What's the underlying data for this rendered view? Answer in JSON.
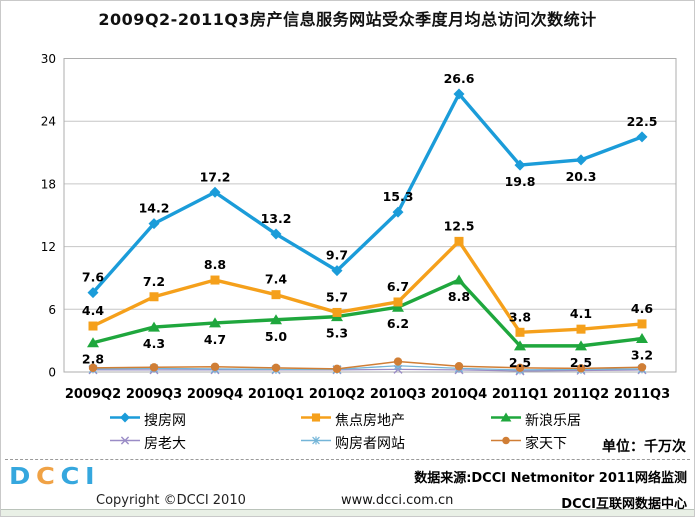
{
  "title": "2009Q2-2011Q3房产信息服务网站受众季度月均总访问次数统计",
  "unit_label": "单位：千万次",
  "chart_data": {
    "type": "line",
    "categories": [
      "2009Q2",
      "2009Q3",
      "2009Q4",
      "2010Q1",
      "2010Q2",
      "2010Q3",
      "2010Q4",
      "2011Q1",
      "2011Q2",
      "2011Q3"
    ],
    "ylim": [
      0,
      30
    ],
    "yticks": [
      0,
      6,
      12,
      18,
      24,
      30
    ],
    "grid": "horizontal",
    "legend_position": "bottom",
    "series": [
      {
        "name": "搜房网",
        "color": "#1B9CD9",
        "marker": "diamond",
        "line_width": 3.4,
        "show_labels": true,
        "label_side": "above",
        "label_overrides": {
          "7": "below",
          "8": "below"
        },
        "values": [
          7.6,
          14.2,
          17.2,
          13.2,
          9.7,
          15.3,
          26.6,
          19.8,
          20.3,
          22.5
        ]
      },
      {
        "name": "焦点房地产",
        "color": "#F5A01B",
        "marker": "square",
        "line_width": 3.4,
        "show_labels": true,
        "label_side": "above",
        "label_overrides": {},
        "values": [
          4.4,
          7.2,
          8.8,
          7.4,
          5.7,
          6.7,
          12.5,
          3.8,
          4.1,
          4.6
        ]
      },
      {
        "name": "新浪乐居",
        "color": "#1FA73D",
        "marker": "triangle",
        "line_width": 3.4,
        "show_labels": true,
        "label_side": "below",
        "label_overrides": {},
        "values": [
          2.8,
          4.3,
          4.7,
          5.0,
          5.3,
          6.2,
          8.8,
          2.5,
          2.5,
          3.2
        ]
      },
      {
        "name": "房老大",
        "color": "#9A8CC6",
        "marker": "x",
        "line_width": 1.3,
        "show_labels": false,
        "label_side": "above",
        "label_overrides": {},
        "values": [
          0.2,
          0.2,
          0.2,
          0.2,
          0.2,
          0.25,
          0.2,
          0.1,
          0.15,
          0.2
        ]
      },
      {
        "name": "购房者网站",
        "color": "#74B5D8",
        "marker": "asterisk",
        "line_width": 1.3,
        "show_labels": false,
        "label_side": "above",
        "label_overrides": {},
        "values": [
          0.3,
          0.35,
          0.3,
          0.25,
          0.25,
          0.6,
          0.35,
          0.2,
          0.25,
          0.3
        ]
      },
      {
        "name": "家天下",
        "color": "#D07E35",
        "marker": "circle",
        "line_width": 1.5,
        "show_labels": false,
        "label_side": "above",
        "label_overrides": {},
        "values": [
          0.4,
          0.45,
          0.5,
          0.4,
          0.3,
          1.0,
          0.55,
          0.4,
          0.35,
          0.45
        ]
      }
    ],
    "colors": {
      "grid": "#c6c6c6",
      "plot_border": "#adadad",
      "label_text": "#000000"
    }
  },
  "footer": {
    "logo": {
      "letters": [
        {
          "ch": "D",
          "color": "#35A7DE"
        },
        {
          "ch": "C",
          "color": "#F0A245"
        },
        {
          "ch": "C",
          "color": "#35A7DE"
        },
        {
          "ch": "I",
          "color": "#35A7DE"
        }
      ]
    },
    "copyright": "Copyright ©DCCI 2010",
    "source": "数据来源:DCCI Netmonitor 2011网络监测",
    "website": "www.dcci.com.cn",
    "org": "DCCI互联网数据中心"
  }
}
